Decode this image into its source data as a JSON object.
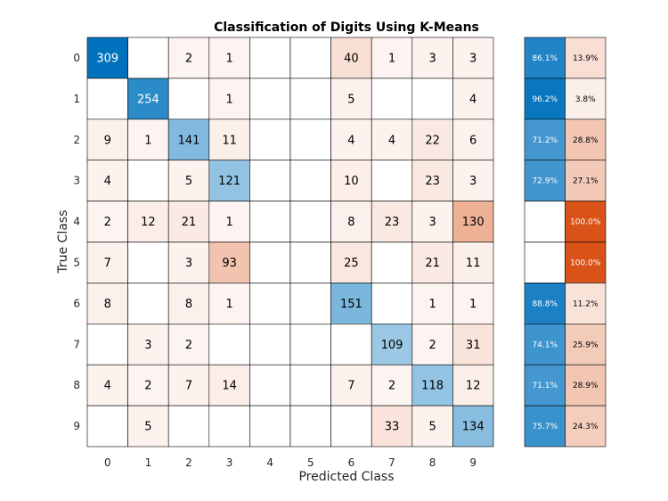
{
  "chart_data": {
    "type": "heatmap",
    "title": "Classification of Digits Using K-Means",
    "xlabel": "Predicted Class",
    "ylabel": "True Class",
    "x_categories": [
      "0",
      "1",
      "2",
      "3",
      "4",
      "5",
      "6",
      "7",
      "8",
      "9"
    ],
    "y_categories": [
      "0",
      "1",
      "2",
      "3",
      "4",
      "5",
      "6",
      "7",
      "8",
      "9"
    ],
    "matrix": [
      [
        309,
        null,
        2,
        1,
        null,
        null,
        40,
        1,
        3,
        3
      ],
      [
        null,
        254,
        null,
        1,
        null,
        null,
        5,
        null,
        null,
        4
      ],
      [
        9,
        1,
        141,
        11,
        null,
        null,
        4,
        4,
        22,
        6
      ],
      [
        4,
        null,
        5,
        121,
        null,
        null,
        10,
        null,
        23,
        3
      ],
      [
        2,
        12,
        21,
        1,
        null,
        null,
        8,
        23,
        3,
        130
      ],
      [
        7,
        null,
        3,
        93,
        null,
        null,
        25,
        null,
        21,
        11
      ],
      [
        8,
        null,
        8,
        1,
        null,
        null,
        151,
        null,
        1,
        1
      ],
      [
        null,
        3,
        2,
        null,
        null,
        null,
        null,
        109,
        2,
        31
      ],
      [
        4,
        2,
        7,
        14,
        null,
        null,
        7,
        2,
        118,
        12
      ],
      [
        null,
        5,
        null,
        null,
        null,
        null,
        null,
        33,
        5,
        134
      ]
    ],
    "row_summary": {
      "correct": [
        "86.1%",
        "96.2%",
        "71.2%",
        "72.9%",
        "",
        "",
        "88.8%",
        "74.1%",
        "71.1%",
        "75.7%"
      ],
      "incorrect": [
        "13.9%",
        "3.8%",
        "28.8%",
        "27.1%",
        "100.0%",
        "100.0%",
        "11.2%",
        "25.9%",
        "28.9%",
        "24.3%"
      ]
    },
    "colors": {
      "correct": "#0072BD",
      "incorrect": "#D95319",
      "background": "#FFFFFF",
      "grid": "#000000"
    }
  }
}
